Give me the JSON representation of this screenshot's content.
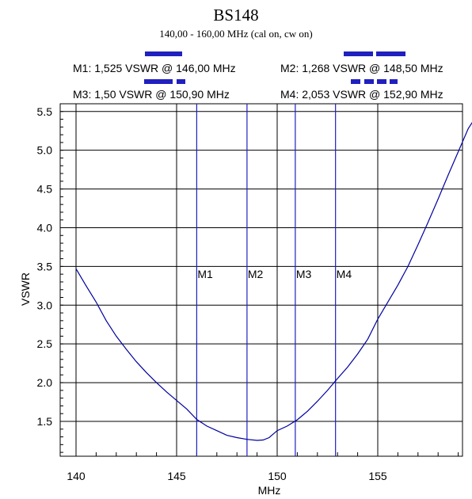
{
  "chart_data": {
    "type": "line",
    "title": "BS148",
    "subtitle": "140,00 - 160,00 MHz (cal on, cw on)",
    "xlabel": "MHz",
    "ylabel": "VSWR",
    "xlim": [
      140,
      160
    ],
    "ylim": [
      1.05,
      5.6
    ],
    "xticks": [
      140,
      145,
      150,
      155
    ],
    "xtick_labels": [
      "140",
      "145",
      "150",
      "155"
    ],
    "yticks": [
      1.5,
      2.0,
      2.5,
      3.0,
      3.5,
      4.0,
      4.5,
      5.0,
      5.5
    ],
    "ytick_labels": [
      "1.5",
      "2.0",
      "2.5",
      "3.0",
      "3.5",
      "4.0",
      "4.5",
      "5.0",
      "5.5"
    ],
    "grid": true,
    "line_color": "#0000a0",
    "marker_color": "#2020c0",
    "series": [
      {
        "x": [
          140,
          140.5,
          141,
          141.5,
          142,
          142.5,
          143,
          143.5,
          144,
          144.5,
          145,
          145.5,
          146,
          146.5,
          147,
          147.5,
          148,
          148.5,
          149,
          149.3,
          149.6,
          150,
          150.5,
          151,
          151.5,
          152,
          152.5,
          153,
          153.5,
          154,
          154.5,
          155,
          155.5,
          156,
          156.5,
          157,
          157.5,
          158,
          158.5,
          159,
          159.5,
          160
        ],
        "y": [
          3.47,
          3.25,
          3.04,
          2.8,
          2.6,
          2.43,
          2.27,
          2.13,
          2.0,
          1.88,
          1.77,
          1.66,
          1.525,
          1.44,
          1.38,
          1.32,
          1.29,
          1.268,
          1.255,
          1.26,
          1.29,
          1.38,
          1.44,
          1.52,
          1.63,
          1.76,
          1.9,
          2.053,
          2.2,
          2.37,
          2.56,
          2.82,
          3.04,
          3.26,
          3.5,
          3.78,
          4.07,
          4.37,
          4.68,
          4.98,
          5.28,
          5.48
        ]
      }
    ],
    "markers": [
      {
        "name": "M1",
        "x": 146.0,
        "text": "M1: 1,525 VSWR @ 146,00 MHz",
        "dash": "solid"
      },
      {
        "name": "M2",
        "x": 148.5,
        "text": "M2: 1,268 VSWR @ 148,50 MHz",
        "dash": "long-dash"
      },
      {
        "name": "M3",
        "x": 150.9,
        "text": "M3: 1,50 VSWR @ 150,90 MHz",
        "dash": "dash"
      },
      {
        "name": "M4",
        "x": 152.9,
        "text": "M4: 2,053 VSWR @ 152,90 MHz",
        "dash": "short-dash"
      }
    ]
  }
}
